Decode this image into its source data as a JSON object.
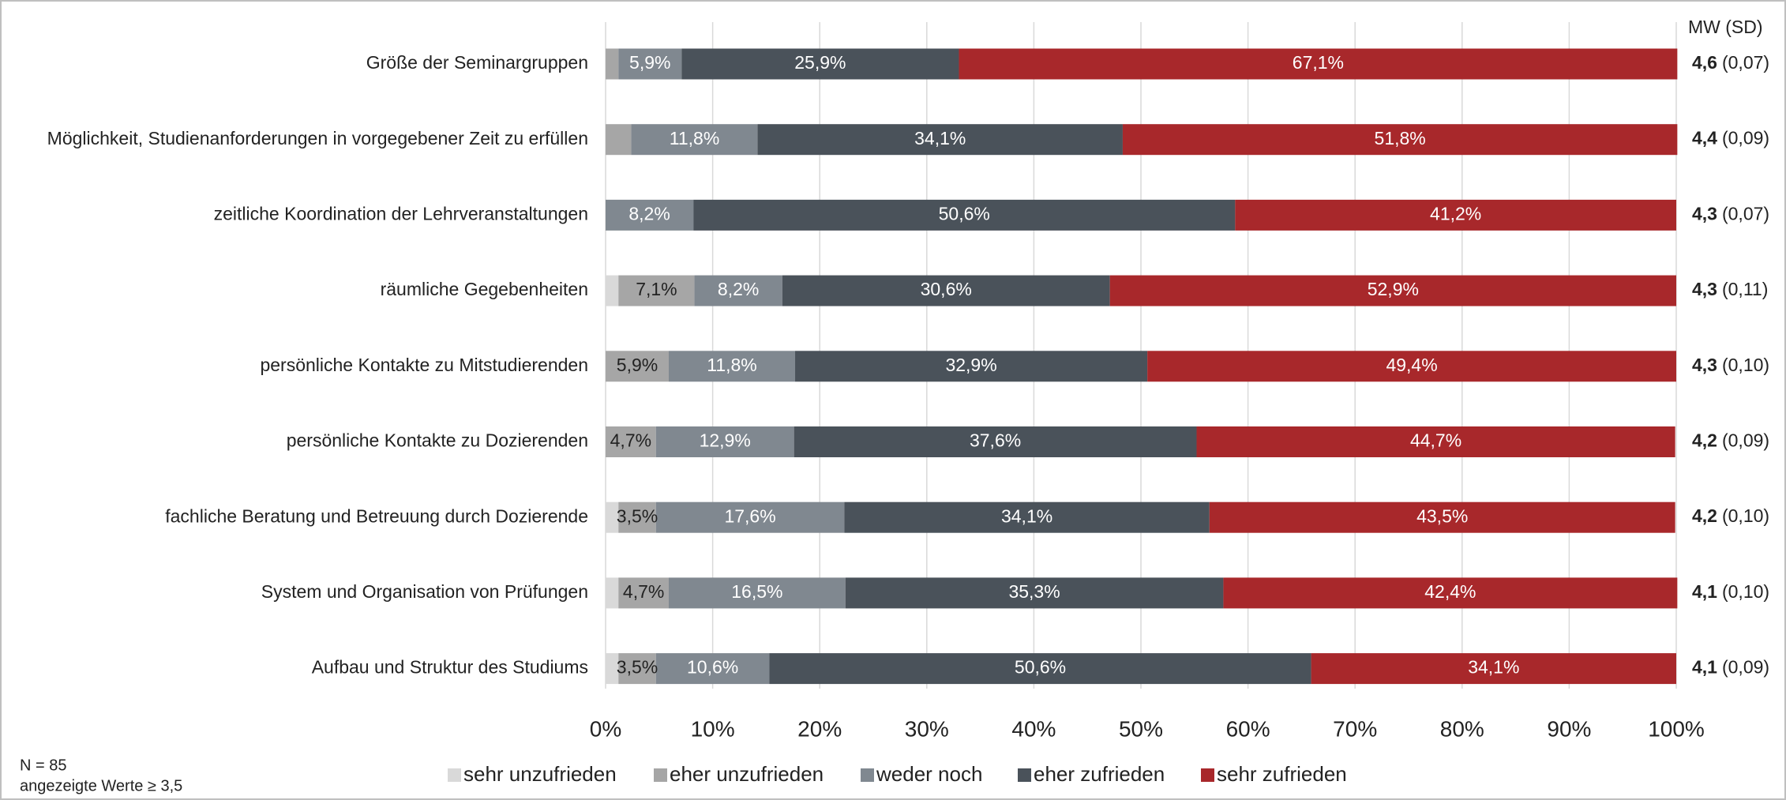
{
  "chart_data": {
    "type": "stacked_barh",
    "categories": [
      "Größe der Seminargruppen",
      "Möglichkeit, Studienanforderungen in vorgegebener Zeit zu erfüllen",
      "zeitliche Koordination der Lehrveranstaltungen",
      "räumliche Gegebenheiten",
      "persönliche Kontakte zu Mitstudierenden",
      "persönliche Kontakte zu Dozierenden",
      "fachliche Beratung und Betreuung durch Dozierende",
      "System und Organisation von Prüfungen",
      "Aufbau und Struktur des Studiums"
    ],
    "series": [
      {
        "name": "sehr unzufrieden",
        "color": "#d9d9d9",
        "text_color": "#222222",
        "values": [
          0,
          0,
          0,
          1.2,
          0,
          0,
          1.2,
          1.2,
          1.2
        ],
        "value_labels": [
          null,
          null,
          null,
          null,
          null,
          null,
          null,
          null,
          null
        ]
      },
      {
        "name": "eher unzufrieden",
        "color": "#a6a6a6",
        "text_color": "#222222",
        "values": [
          1.2,
          2.4,
          0,
          7.1,
          5.9,
          4.7,
          3.5,
          4.7,
          3.5
        ],
        "value_labels": [
          null,
          null,
          null,
          "7,1%",
          "5,9%",
          "4,7%",
          "3,5%",
          "4,7%",
          "3,5%"
        ]
      },
      {
        "name": "weder noch",
        "color": "#808890",
        "text_color": "#ffffff",
        "values": [
          5.9,
          11.8,
          8.2,
          8.2,
          11.8,
          12.9,
          17.6,
          16.5,
          10.6
        ],
        "value_labels": [
          "5,9%",
          "11,8%",
          "8,2%",
          "8,2%",
          "11,8%",
          "12,9%",
          "17,6%",
          "16,5%",
          "10,6%"
        ]
      },
      {
        "name": "eher zufrieden",
        "color": "#4a525a",
        "text_color": "#ffffff",
        "values": [
          25.9,
          34.1,
          50.6,
          30.6,
          32.9,
          37.6,
          34.1,
          35.3,
          50.6
        ],
        "value_labels": [
          "25,9%",
          "34,1%",
          "50,6%",
          "30,6%",
          "32,9%",
          "37,6%",
          "34,1%",
          "35,3%",
          "50,6%"
        ]
      },
      {
        "name": "sehr zufrieden",
        "color": "#a8282b",
        "text_color": "#ffffff",
        "values": [
          67.1,
          51.8,
          41.2,
          52.9,
          49.4,
          44.7,
          43.5,
          42.4,
          34.1
        ],
        "value_labels": [
          "67,1%",
          "51,8%",
          "41,2%",
          "52,9%",
          "49,4%",
          "44,7%",
          "43,5%",
          "42,4%",
          "34,1%"
        ]
      }
    ],
    "xlim": [
      0,
      100
    ],
    "xticks": [
      {
        "value": 0,
        "label": "0%"
      },
      {
        "value": 10,
        "label": "10%"
      },
      {
        "value": 20,
        "label": "20%"
      },
      {
        "value": 30,
        "label": "30%"
      },
      {
        "value": 40,
        "label": "40%"
      },
      {
        "value": 50,
        "label": "50%"
      },
      {
        "value": 60,
        "label": "60%"
      },
      {
        "value": 70,
        "label": "70%"
      },
      {
        "value": 80,
        "label": "80%"
      },
      {
        "value": 90,
        "label": "90%"
      },
      {
        "value": 100,
        "label": "100%"
      }
    ],
    "grid": true,
    "stats_header": "MW (SD)",
    "mean_labels": [
      "4,6",
      "4,4",
      "4,3",
      "4,3",
      "4,3",
      "4,2",
      "4,2",
      "4,1",
      "4,1"
    ],
    "sd_labels": [
      "(0,07)",
      "(0,09)",
      "(0,07)",
      "(0,11)",
      "(0,10)",
      "(0,09)",
      "(0,10)",
      "(0,10)",
      "(0,09)"
    ],
    "notes": [
      "N = 85",
      "angezeigte Werte ≥ 3,5"
    ]
  }
}
